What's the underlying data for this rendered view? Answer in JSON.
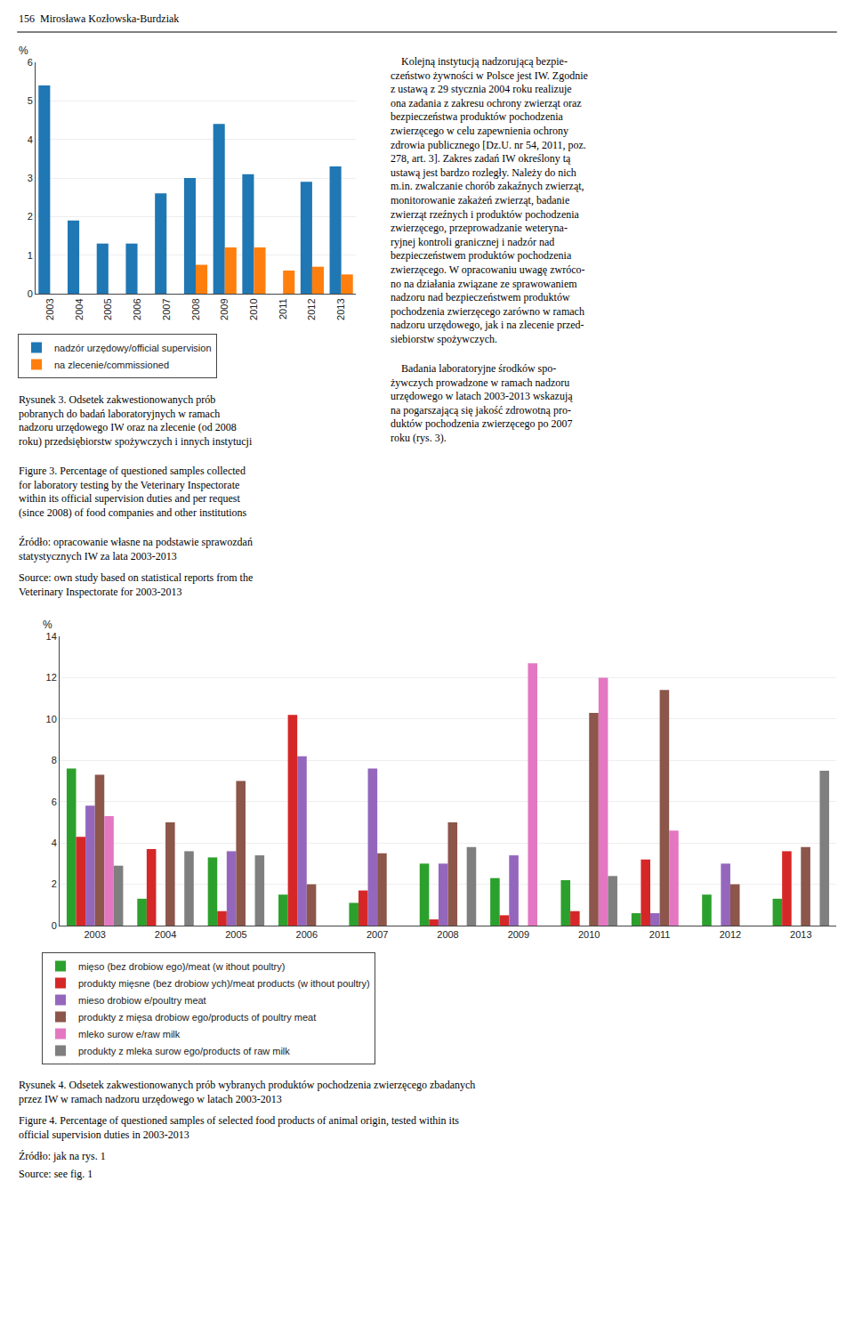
{
  "chart_data": [
    {
      "type": "bar",
      "categories": [
        "2003",
        "2004",
        "2005",
        "2006",
        "2007",
        "2008",
        "2009",
        "2010",
        "2011",
        "2012",
        "2013"
      ],
      "series": [
        {
          "name": "nadzór urzędowy/official supervision",
          "values": [
            5.4,
            1.9,
            1.3,
            1.3,
            2.6,
            3.0,
            4.4,
            3.1,
            0.0,
            2.9,
            3.3
          ]
        },
        {
          "name": "na zlecenie/commissioned",
          "values": [
            0.0,
            0.0,
            0.0,
            0.0,
            0.0,
            0.75,
            1.2,
            1.2,
            0.6,
            0.7,
            0.5
          ]
        }
      ],
      "ylabel": "%",
      "ylim": [
        0,
        6
      ],
      "yticks": [
        0,
        1,
        2,
        3,
        4,
        5,
        6
      ],
      "grid": true,
      "legend": "lower left",
      "annotations": [
        "156  Mirosława Kozłowska-Burdziak",
        "    Kolejną instytucją nadzorującą bezpie-\nczeństwo żywności w Polsce jest IW. Zgodnie\nz ustawą z 29 stycznia 2004 roku realizuje\nona zadania z zakresu ochrony zwierząt oraz\nbezpieczeństwa produktów pochodzenia\nzwierzęcego w celu zapewnienia ochrony\nzdrowia publicznego [Dz.U. nr 54, 2011, poz.\n278, art. 3]. Zakres zadań IW określony tą\nustawą jest bardzo rozległy. Należy do nich\nm.in. zwalczanie chorób zakaźnych zwierząt,\nmonitorowanie zakażeń zwierząt, badanie\nzwierząt rzeźnych i produktów pochodzenia\nzwierzęcego, przeprowadzanie weteryna-\nryjnej kontroli granicznej i nadzór nad\nbezpieczeństwem produktów pochodzenia\nzwierzęcego. W opracowaniu uwagę zwróco-\nno na działania związane ze sprawowaniem\nnadzoru nad bezpieczeństwem produktów\npochodzenia zwierzęcego zarówno w ramach\nnadzoru urzędowego, jak i na zlecenie przed-\nsiebiorstw spożywczych.",
        "    Badania laboratoryjne środków spo-\nżywczych prowadzone w ramach nadzoru\nurzędowego w latach 2003-2013 wskazują\nna pogarszającą się jakość zdrowotną pro-\nduktów pochodzenia zwierzęcego po 2007\nroku (rys. 3).",
        "Rysunek 3. Odsetek zakwestionowanych prób\npobranych do badań laboratoryjnych w ramach\nnadzoru urzędowego IW oraz na zlecenie (od 2008\nroku) przedsiębiorstw spożywczych i innych instytucji",
        "Figure 3. Percentage of questioned samples collected\nfor laboratory testing by the Veterinary Inspectorate\nwithin its official supervision duties and per request\n(since 2008) of food companies and other institutions",
        "Źródło: opracowanie własne na podstawie sprawozdań\nstatystycznych IW za lata 2003-2013",
        "Source: own study based on statistical reports from the\nVeterinary Inspectorate for 2003-2013"
      ]
    },
    {
      "type": "bar",
      "categories": [
        "2003",
        "2004",
        "2005",
        "2006",
        "2007",
        "2008",
        "2009",
        "2010",
        "2011",
        "2012",
        "2013"
      ],
      "series": [
        {
          "name": "mięso (bez drobiow ego)/meat (w ithout poultry)",
          "values": [
            7.6,
            1.3,
            3.3,
            1.5,
            1.1,
            3.0,
            2.3,
            2.2,
            0.6,
            1.5,
            1.3
          ]
        },
        {
          "name": "produkty mięsne (bez drobiow ych)/meat products (w ithout poultry)",
          "values": [
            4.3,
            3.7,
            0.7,
            10.2,
            1.7,
            0.3,
            0.5,
            0.7,
            3.2,
            0.0,
            3.6
          ]
        },
        {
          "name": "mieso drobiow e/poultry meat",
          "values": [
            5.8,
            0.0,
            3.6,
            8.2,
            7.6,
            3.0,
            3.4,
            0.0,
            0.6,
            3.0,
            0.0
          ]
        },
        {
          "name": "produkty z mięsa drobiow ego/products of poultry meat",
          "values": [
            7.3,
            5.0,
            7.0,
            2.0,
            3.5,
            5.0,
            0.0,
            10.3,
            11.4,
            2.0,
            3.8
          ]
        },
        {
          "name": "mleko surow e/raw milk",
          "values": [
            5.3,
            0.0,
            0.0,
            0.0,
            0.0,
            0.0,
            12.7,
            12.0,
            4.6,
            0.0,
            0.0
          ]
        },
        {
          "name": "produkty z mleka surow ego/products of raw milk",
          "values": [
            2.9,
            3.6,
            3.4,
            0.0,
            0.0,
            3.8,
            0.0,
            2.4,
            0.0,
            0.0,
            7.5
          ]
        }
      ],
      "ylabel": "%",
      "ylim": [
        0,
        14
      ],
      "yticks": [
        0,
        2,
        4,
        6,
        8,
        10,
        12,
        14
      ],
      "grid": true,
      "legend": "lower left",
      "annotations": [
        "Rysunek 4. Odsetek zakwestionowanych prób wybranych produktów pochodzenia zwierzęcego zbadanych\nprzez IW w ramach nadzoru urzędowego w latach 2003-2013",
        "Figure 4. Percentage of questioned samples of selected food products of animal origin, tested within its\nofficial supervision duties in 2003-2013",
        "Źródło: jak na rys. 1",
        "Source: see fig. 1"
      ]
    }
  ]
}
